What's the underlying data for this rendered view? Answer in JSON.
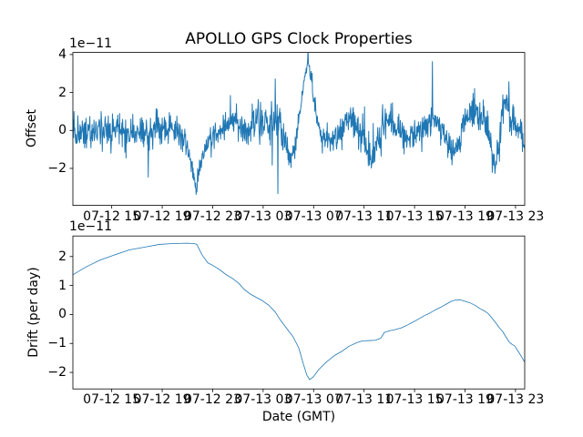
{
  "figure": {
    "title": "APOLLO GPS Clock Properties",
    "xlabel": "Date (GMT)",
    "background_color": "#ffffff",
    "line_color": "#1f77b4",
    "text_color": "#000000",
    "x_unit": "hours since 07-12 12:00 GMT",
    "xtick_hours": [
      3,
      7,
      11,
      15,
      19,
      23,
      27,
      31,
      35
    ],
    "xtick_labels": [
      "07-12 15",
      "07-12 19",
      "07-12 23",
      "07-13 03",
      "07-13 07",
      "07-13 11",
      "07-13 15",
      "07-13 19",
      "07-13 23"
    ]
  },
  "chart_data": [
    {
      "type": "line",
      "name": "offset",
      "ylabel": "Offset",
      "offset_text": "1e−11",
      "scale_factor": "1e-11",
      "ylim": [
        -3.95,
        4.11
      ],
      "yticks": [
        -2,
        0,
        2,
        4
      ],
      "xlim": [
        -0.08,
        35.73
      ],
      "grid": false,
      "legend": false,
      "series": {
        "name": "clock-offset-noisy",
        "synthesis": {
          "seed": 12,
          "n": 1200,
          "spike_prob": 0.02,
          "spike_scale": 2.4,
          "mean_keypoints": [
            [
              -0.08,
              0
            ],
            [
              1.36,
              -0.05
            ],
            [
              3.53,
              0.1
            ],
            [
              4.97,
              -0.15
            ],
            [
              6.42,
              0.05
            ],
            [
              7.5,
              0
            ],
            [
              8.22,
              -0.1
            ],
            [
              8.8,
              -0.6
            ],
            [
              9.31,
              -1.5
            ],
            [
              9.67,
              -3.1
            ],
            [
              9.95,
              -2.2
            ],
            [
              10.39,
              -1.0
            ],
            [
              10.89,
              -0.4
            ],
            [
              11.47,
              0
            ],
            [
              12.19,
              0.25
            ],
            [
              12.77,
              0.35
            ],
            [
              13.35,
              0.05
            ],
            [
              14.0,
              0.1
            ],
            [
              14.57,
              0.35
            ],
            [
              15.22,
              0.2
            ],
            [
              15.8,
              0.25
            ],
            [
              16.31,
              0.4
            ],
            [
              16.74,
              -0.6
            ],
            [
              17.1,
              -1.5
            ],
            [
              17.46,
              -1.2
            ],
            [
              17.75,
              0.2
            ],
            [
              18.04,
              1.6
            ],
            [
              18.33,
              3.0
            ],
            [
              18.55,
              3.55
            ],
            [
              18.76,
              2.9
            ],
            [
              19.05,
              1.6
            ],
            [
              19.34,
              0.4
            ],
            [
              19.7,
              -0.25
            ],
            [
              20.13,
              -0.45
            ],
            [
              20.71,
              -0.3
            ],
            [
              21.14,
              -0.1
            ],
            [
              21.58,
              0.5
            ],
            [
              22.01,
              0.6
            ],
            [
              22.44,
              0.25
            ],
            [
              22.8,
              -0.2
            ],
            [
              23.24,
              -1.0
            ],
            [
              23.6,
              -1.5
            ],
            [
              23.96,
              -0.7
            ],
            [
              24.32,
              0.2
            ],
            [
              24.75,
              0.55
            ],
            [
              25.19,
              0.55
            ],
            [
              25.62,
              0.05
            ],
            [
              26.12,
              -0.3
            ],
            [
              26.63,
              -0.55
            ],
            [
              27.13,
              -0.1
            ],
            [
              27.64,
              0.2
            ],
            [
              28.14,
              0.5
            ],
            [
              28.58,
              0.65
            ],
            [
              29.01,
              0.35
            ],
            [
              29.44,
              -0.3
            ],
            [
              29.8,
              -0.9
            ],
            [
              30.09,
              -1.35
            ],
            [
              30.45,
              -0.6
            ],
            [
              30.81,
              0.3
            ],
            [
              31.18,
              1.0
            ],
            [
              31.54,
              1.45
            ],
            [
              31.9,
              0.9
            ],
            [
              32.26,
              0.55
            ],
            [
              32.62,
              0.45
            ],
            [
              32.91,
              -0.4
            ],
            [
              33.2,
              -1.5
            ],
            [
              33.42,
              -1.9
            ],
            [
              33.71,
              -0.8
            ],
            [
              33.92,
              0.6
            ],
            [
              34.14,
              1.5
            ],
            [
              34.36,
              1.3
            ],
            [
              34.65,
              0.7
            ],
            [
              35.01,
              0.45
            ],
            [
              35.37,
              0.2
            ],
            [
              35.73,
              -0.9
            ]
          ],
          "std_keypoints": [
            [
              -0.08,
              0.42
            ],
            [
              8.8,
              0.42
            ],
            [
              9.3,
              0.25
            ],
            [
              9.95,
              0.25
            ],
            [
              10.6,
              0.4
            ],
            [
              16.3,
              0.45
            ],
            [
              17.5,
              0.3
            ],
            [
              18.1,
              0.15
            ],
            [
              18.9,
              0.15
            ],
            [
              19.6,
              0.35
            ],
            [
              20.5,
              0.42
            ],
            [
              35.73,
              0.42
            ]
          ]
        }
      }
    },
    {
      "type": "line",
      "name": "drift",
      "ylabel": "Drift (per day)",
      "offset_text": "1e−11",
      "scale_factor": "1e-11",
      "ylim": [
        -2.57,
        2.71
      ],
      "yticks": [
        -2,
        -1,
        0,
        1,
        2
      ],
      "xlim": [
        -0.08,
        35.73
      ],
      "grid": false,
      "legend": false,
      "series": {
        "name": "clock-drift-curve",
        "points": [
          [
            -0.08,
            1.37
          ],
          [
            1.0,
            1.65
          ],
          [
            2.08,
            1.88
          ],
          [
            3.17,
            2.05
          ],
          [
            4.39,
            2.23
          ],
          [
            5.69,
            2.33
          ],
          [
            6.78,
            2.42
          ],
          [
            7.86,
            2.45
          ],
          [
            8.94,
            2.46
          ],
          [
            9.52,
            2.45
          ],
          [
            9.74,
            2.42
          ],
          [
            10.17,
            2.05
          ],
          [
            10.6,
            1.79
          ],
          [
            11.11,
            1.67
          ],
          [
            11.61,
            1.53
          ],
          [
            12.05,
            1.38
          ],
          [
            12.55,
            1.25
          ],
          [
            13.06,
            1.08
          ],
          [
            13.49,
            0.87
          ],
          [
            14.0,
            0.7
          ],
          [
            14.5,
            0.58
          ],
          [
            14.93,
            0.48
          ],
          [
            15.44,
            0.32
          ],
          [
            15.95,
            0.09
          ],
          [
            16.38,
            -0.2
          ],
          [
            16.88,
            -0.49
          ],
          [
            17.39,
            -0.78
          ],
          [
            17.82,
            -1.15
          ],
          [
            18.18,
            -1.7
          ],
          [
            18.47,
            -2.1
          ],
          [
            18.69,
            -2.25
          ],
          [
            18.98,
            -2.15
          ],
          [
            19.41,
            -1.9
          ],
          [
            19.99,
            -1.65
          ],
          [
            20.64,
            -1.42
          ],
          [
            21.21,
            -1.28
          ],
          [
            21.79,
            -1.1
          ],
          [
            22.44,
            -0.97
          ],
          [
            22.88,
            -0.91
          ],
          [
            23.45,
            -0.9
          ],
          [
            23.89,
            -0.89
          ],
          [
            24.32,
            -0.82
          ],
          [
            24.61,
            -0.62
          ],
          [
            25.04,
            -0.56
          ],
          [
            25.4,
            -0.53
          ],
          [
            25.91,
            -0.47
          ],
          [
            26.41,
            -0.37
          ],
          [
            26.85,
            -0.27
          ],
          [
            27.35,
            -0.15
          ],
          [
            27.78,
            -0.04
          ],
          [
            28.22,
            0.05
          ],
          [
            28.65,
            0.16
          ],
          [
            29.16,
            0.27
          ],
          [
            29.52,
            0.36
          ],
          [
            29.88,
            0.45
          ],
          [
            30.24,
            0.5
          ],
          [
            30.6,
            0.51
          ],
          [
            30.96,
            0.46
          ],
          [
            31.4,
            0.4
          ],
          [
            31.83,
            0.31
          ],
          [
            32.19,
            0.2
          ],
          [
            32.55,
            0.12
          ],
          [
            32.84,
            0.03
          ],
          [
            33.13,
            -0.12
          ],
          [
            33.42,
            -0.28
          ],
          [
            33.71,
            -0.45
          ],
          [
            34.0,
            -0.6
          ],
          [
            34.28,
            -0.8
          ],
          [
            34.5,
            -0.95
          ],
          [
            34.72,
            -1.03
          ],
          [
            34.93,
            -1.08
          ],
          [
            35.22,
            -1.28
          ],
          [
            35.51,
            -1.48
          ],
          [
            35.73,
            -1.65
          ]
        ]
      }
    }
  ]
}
